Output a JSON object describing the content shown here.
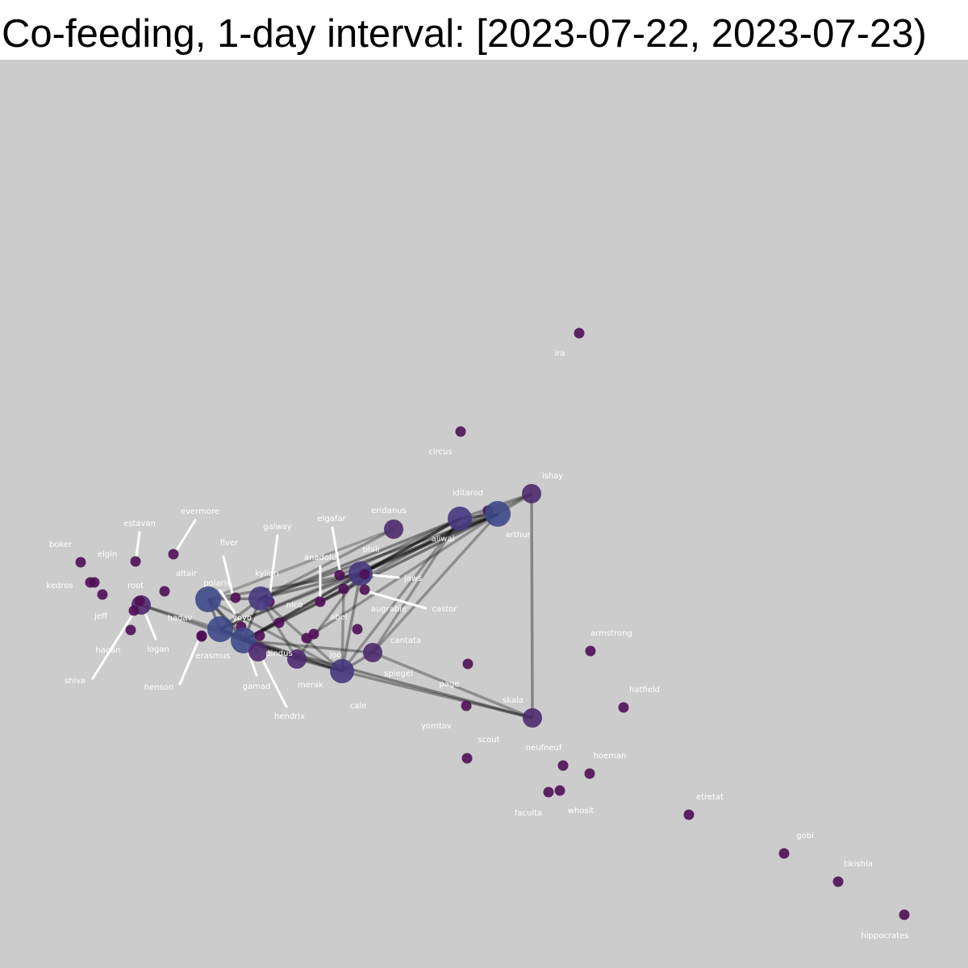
{
  "title": "Co-feeding, 1-day interval: [2023-07-22, 2023-07-23)",
  "colors": {
    "plot_background": "#cccccc",
    "node_small": "#4f0f57",
    "node_medium": "#4e2a6e",
    "node_large": "#47397f",
    "node_xlarge": "#3f4a88",
    "edge": "#000000",
    "label_text": "#ffffff",
    "leader_line": "#ffffff"
  },
  "graph": {
    "nodes": [
      {
        "id": "ira",
        "label": "ira"
      },
      {
        "id": "circus",
        "label": "circus"
      },
      {
        "id": "ishay",
        "label": "ishay"
      },
      {
        "id": "iditarod",
        "label": "iditarod"
      },
      {
        "id": "arthur",
        "label": "arthur"
      },
      {
        "id": "eridanus",
        "label": "eridanus"
      },
      {
        "id": "aliwal",
        "label": "aliwal"
      },
      {
        "id": "elgafar",
        "label": "elgafar"
      },
      {
        "id": "phili",
        "label": "phili"
      },
      {
        "id": "jaws",
        "label": "jaws"
      },
      {
        "id": "anadolu",
        "label": "anadolu"
      },
      {
        "id": "augrabie",
        "label": "augrabie"
      },
      {
        "id": "castor",
        "label": "castor"
      },
      {
        "id": "galway",
        "label": "galway"
      },
      {
        "id": "kylian",
        "label": "kylian"
      },
      {
        "id": "nico",
        "label": "nico"
      },
      {
        "id": "abel",
        "label": "abel"
      },
      {
        "id": "fiver",
        "label": "fiver"
      },
      {
        "id": "polaris",
        "label": "polaris"
      },
      {
        "id": "yoyo",
        "label": "yoyo"
      },
      {
        "id": "evermore",
        "label": "evermore"
      },
      {
        "id": "altair",
        "label": "altair"
      },
      {
        "id": "estavan",
        "label": "estavan"
      },
      {
        "id": "boker",
        "label": "boker"
      },
      {
        "id": "elgin",
        "label": "elgin"
      },
      {
        "id": "kedros",
        "label": "kedros"
      },
      {
        "id": "root",
        "label": "root"
      },
      {
        "id": "jeff",
        "label": "jeff"
      },
      {
        "id": "hadav",
        "label": "hadav"
      },
      {
        "id": "hagan",
        "label": "hagan"
      },
      {
        "id": "logan",
        "label": "logan"
      },
      {
        "id": "shiva",
        "label": "shiva"
      },
      {
        "id": "henson",
        "label": "henson"
      },
      {
        "id": "erasmus",
        "label": "erasmus"
      },
      {
        "id": "gamad",
        "label": "gamad"
      },
      {
        "id": "hendrix",
        "label": "hendrix"
      },
      {
        "id": "pindus",
        "label": "pindus"
      },
      {
        "id": "merak",
        "label": "merak"
      },
      {
        "id": "joo",
        "label": "joo"
      },
      {
        "id": "cale",
        "label": "cale"
      },
      {
        "id": "spiegel",
        "label": "spiegel"
      },
      {
        "id": "cantata",
        "label": "cantata"
      },
      {
        "id": "page",
        "label": "page"
      },
      {
        "id": "yomtov",
        "label": "yomtov"
      },
      {
        "id": "skala",
        "label": "skala"
      },
      {
        "id": "scout",
        "label": "scout"
      },
      {
        "id": "armstrong",
        "label": "armstrong"
      },
      {
        "id": "hatfield",
        "label": "hatfield"
      },
      {
        "id": "neufneuf",
        "label": "neufneuf"
      },
      {
        "id": "hoeman",
        "label": "hoeman"
      },
      {
        "id": "faculta",
        "label": "faculta"
      },
      {
        "id": "whosit",
        "label": "whosit"
      },
      {
        "id": "etretat",
        "label": "etretat"
      },
      {
        "id": "gobi",
        "label": "gobi"
      },
      {
        "id": "tikishla",
        "label": "tikishla"
      },
      {
        "id": "hippocrates",
        "label": "hippocrates"
      }
    ]
  }
}
